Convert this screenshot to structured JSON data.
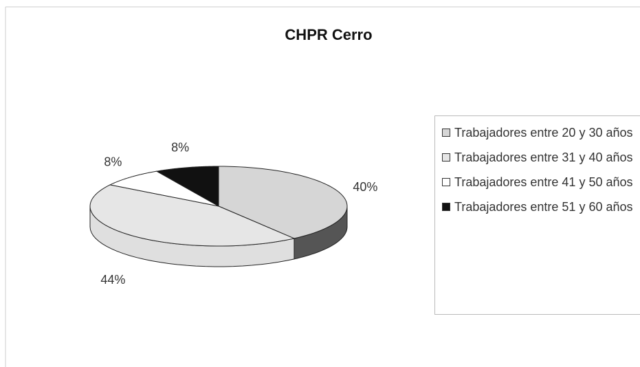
{
  "chart_data": {
    "type": "pie",
    "title": "CHPR Cerro",
    "categories": [
      "Trabajadores entre 20 y 30 años",
      "Trabajadores entre 31 y 40 años",
      "Trabajadores entre 41 y 50 años",
      "Trabajadores entre 51 y 60 años"
    ],
    "values": [
      40,
      44,
      8,
      8
    ],
    "value_labels": [
      "40%",
      "44%",
      "8%",
      "8%"
    ],
    "colors": [
      "#d6d6d6",
      "#e6e6e6",
      "#ffffff",
      "#111111"
    ],
    "legend": "right"
  }
}
